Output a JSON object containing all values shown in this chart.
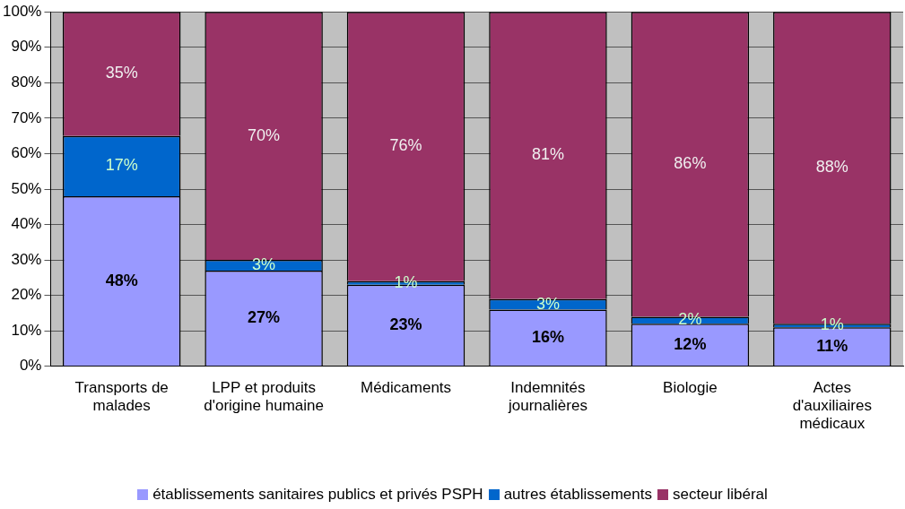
{
  "chart_data": {
    "type": "bar",
    "stacked": true,
    "categories": [
      "Transports de malades",
      "LPP et produits d'origine humaine",
      "Médicaments",
      "Indemnités journalières",
      "Biologie",
      "Actes d'auxiliaires médicaux"
    ],
    "series": [
      {
        "name": "établissements sanitaires publics et privés PSPH",
        "color": "#9999ff",
        "values": [
          48,
          27,
          23,
          16,
          12,
          11
        ],
        "value_labels": [
          "48%",
          "27%",
          "23%",
          "16%",
          "12%",
          "11%"
        ]
      },
      {
        "name": "autres établissements",
        "color": "#0066cc",
        "values": [
          17,
          3,
          1,
          3,
          2,
          1
        ],
        "value_labels": [
          "17%",
          "3%",
          "1%",
          "3%",
          "2%",
          "1%"
        ]
      },
      {
        "name": "secteur libéral",
        "color": "#993366",
        "values": [
          35,
          70,
          76,
          81,
          86,
          88
        ],
        "value_labels": [
          "35%",
          "70%",
          "76%",
          "81%",
          "86%",
          "88%"
        ]
      }
    ],
    "ylim": [
      0,
      100
    ],
    "yticks": [
      {
        "value": 0,
        "label": "0%"
      },
      {
        "value": 10,
        "label": "10%"
      },
      {
        "value": 20,
        "label": "20%"
      },
      {
        "value": 30,
        "label": "30%"
      },
      {
        "value": 40,
        "label": "40%"
      },
      {
        "value": 50,
        "label": "50%"
      },
      {
        "value": 60,
        "label": "60%"
      },
      {
        "value": 70,
        "label": "70%"
      },
      {
        "value": 80,
        "label": "80%"
      },
      {
        "value": 90,
        "label": "90%"
      },
      {
        "value": 100,
        "label": "100%"
      }
    ],
    "grid": "y",
    "legend": "bottom"
  }
}
